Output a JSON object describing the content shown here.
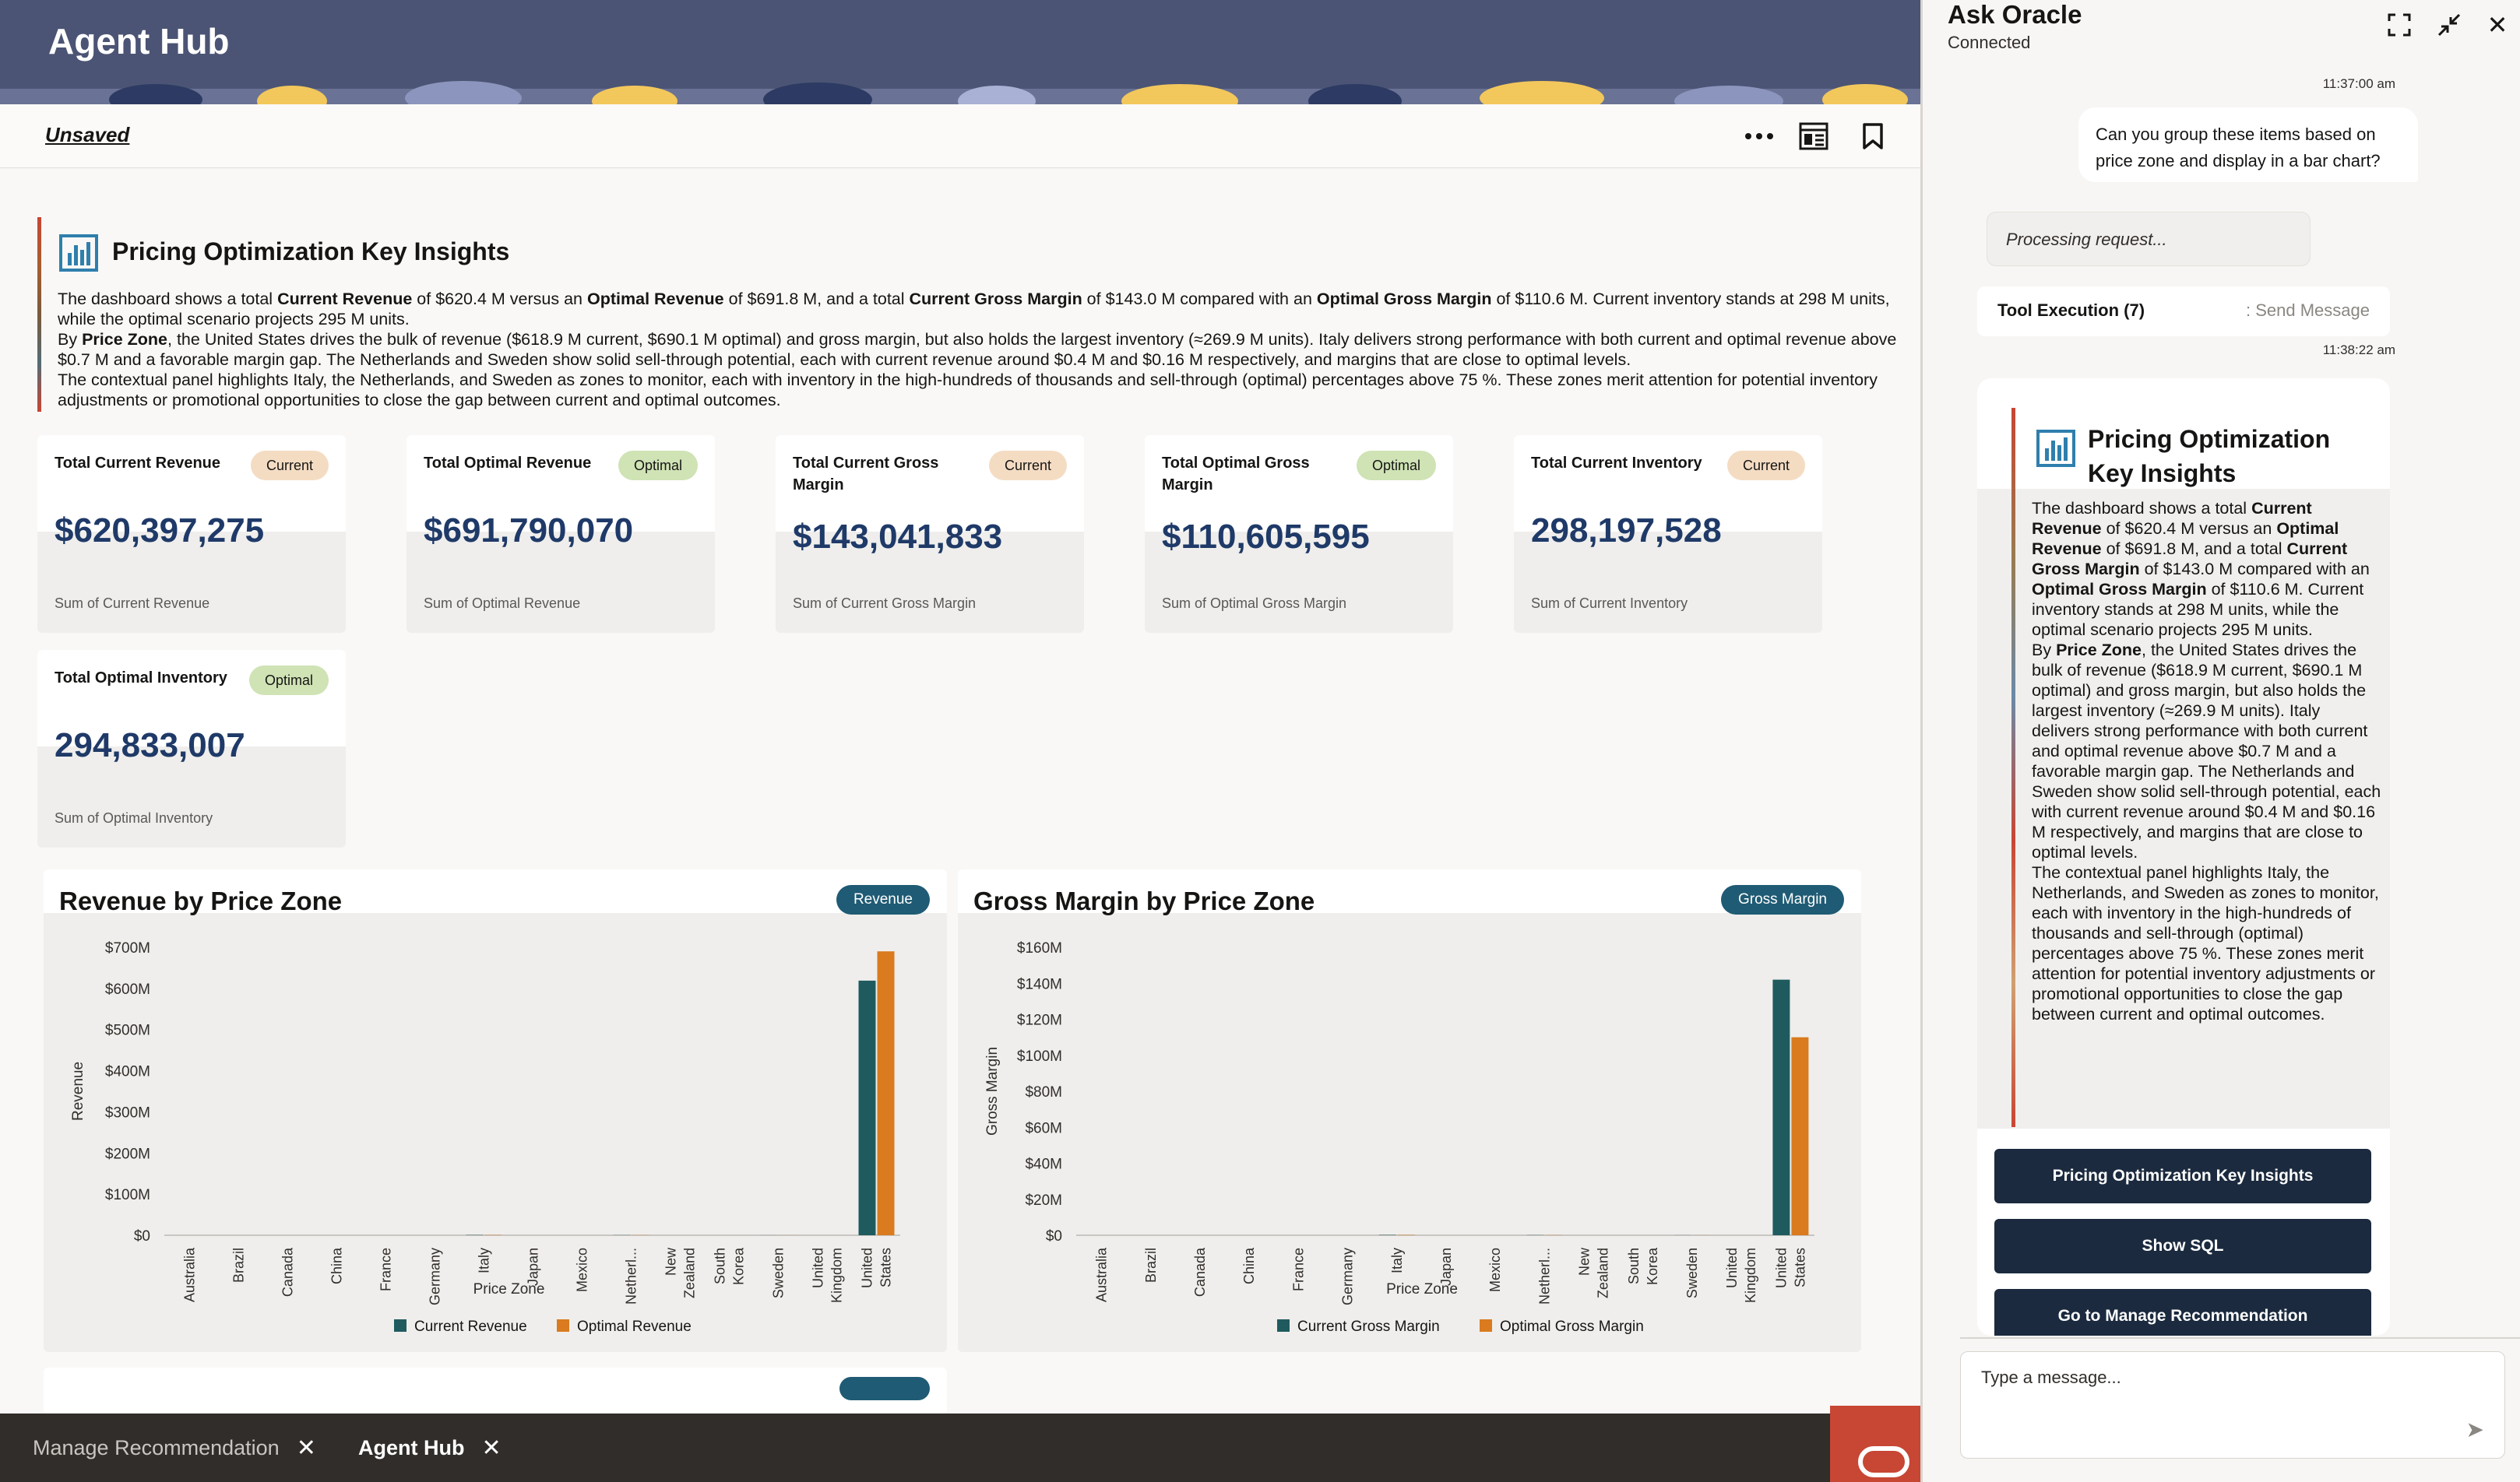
{
  "header": {
    "title": "Agent Hub"
  },
  "toolbar": {
    "unsaved_label": "Unsaved",
    "more_icon": "…",
    "layout_icon": "layout-icon",
    "bookmark_icon": "bookmark-icon"
  },
  "insights": {
    "title": "Pricing Optimization Key Insights",
    "p1_a": "The dashboard shows a total ",
    "p1_b": "Current Revenue",
    "p1_c": " of $620.4 M versus an ",
    "p1_d": "Optimal Revenue",
    "p1_e": " of $691.8 M, and a total ",
    "p1_f": "Current Gross Margin",
    "p1_g": " of $143.0 M compared with an ",
    "p1_h": "Optimal Gross Margin",
    "p1_i": " of $110.6 M. Current inventory stands at 298 M units, while the optimal scenario projects 295 M units.",
    "p2_a": "By ",
    "p2_b": "Price Zone",
    "p2_c": ", the United States drives the bulk of revenue ($618.9 M current, $690.1 M optimal) and gross margin, but also holds the largest inventory (≈269.9 M units). Italy delivers strong performance with both current and optimal revenue above $0.7 M and a favorable margin gap. The Netherlands and Sweden show solid sell-through potential, each with current revenue around $0.4 M and $0.16 M respectively, and margins that are close to optimal levels.",
    "p3": "The contextual panel highlights Italy, the Netherlands, and Sweden as zones to monitor, each with inventory in the high-hundreds of thousands and sell-through (optimal) percentages above 75 %. These zones merit attention for potential inventory adjustments or promotional opportunities to close the gap between current and optimal outcomes."
  },
  "kpis": [
    {
      "label": "Total Current Revenue",
      "badge": "Current",
      "value": "$620,397,275",
      "sub": "Sum of Current Revenue"
    },
    {
      "label": "Total Optimal Revenue",
      "badge": "Optimal",
      "value": "$691,790,070",
      "sub": "Sum of Optimal Revenue"
    },
    {
      "label": "Total Current Gross Margin",
      "badge": "Current",
      "value": "$143,041,833",
      "sub": "Sum of Current Gross Margin"
    },
    {
      "label": "Total Optimal Gross Margin",
      "badge": "Optimal",
      "value": "$110,605,595",
      "sub": "Sum of Optimal Gross Margin"
    },
    {
      "label": "Total Current Inventory",
      "badge": "Current",
      "value": "298,197,528",
      "sub": "Sum of Current Inventory"
    },
    {
      "label": "Total Optimal Inventory",
      "badge": "Optimal",
      "value": "294,833,007",
      "sub": "Sum of Optimal Inventory"
    }
  ],
  "colors": {
    "current": "#1f5b5e",
    "optimal": "#d97b1e",
    "badge_current": "#f4dcc3",
    "badge_optimal": "#cfe3b5",
    "header": "#4b5474",
    "kpi_value": "#1f3a68"
  },
  "charts": [
    {
      "title": "Revenue by Price Zone",
      "badge": "Revenue"
    },
    {
      "title": "Gross Margin by Price Zone",
      "badge": "Gross Margin"
    }
  ],
  "chart_data": [
    {
      "type": "bar",
      "title": "Revenue by Price Zone",
      "xlabel": "Price Zone",
      "ylabel": "Revenue",
      "yticks": [
        "$0",
        "$100M",
        "$200M",
        "$300M",
        "$400M",
        "$500M",
        "$600M",
        "$700M"
      ],
      "ylim": [
        0,
        700
      ],
      "categories": [
        [
          "Australia"
        ],
        [
          "Brazil"
        ],
        [
          "Canada"
        ],
        [
          "China"
        ],
        [
          "France"
        ],
        [
          "Germany"
        ],
        [
          "Italy"
        ],
        [
          "Japan"
        ],
        [
          "Mexico"
        ],
        [
          "Netherl..."
        ],
        [
          "New",
          "Zealand"
        ],
        [
          "South",
          "Korea"
        ],
        [
          "Sweden"
        ],
        [
          "United",
          "Kingdom"
        ],
        [
          "United",
          "States"
        ]
      ],
      "series": [
        {
          "name": "Current Revenue",
          "values": [
            0,
            0,
            0,
            0,
            0,
            0,
            0.7,
            0,
            0,
            0.4,
            0,
            0,
            0.16,
            0,
            618.9
          ]
        },
        {
          "name": "Optimal Revenue",
          "values": [
            0,
            0,
            0,
            0,
            0,
            0,
            0.7,
            0,
            0,
            0.4,
            0,
            0,
            0.16,
            0,
            690.1
          ]
        }
      ],
      "legend": "bottom",
      "grid": false
    },
    {
      "type": "bar",
      "title": "Gross Margin by Price Zone",
      "xlabel": "Price Zone",
      "ylabel": "Gross Margin",
      "yticks": [
        "$0",
        "$20M",
        "$40M",
        "$60M",
        "$80M",
        "$100M",
        "$120M",
        "$140M",
        "$160M"
      ],
      "ylim": [
        0,
        160
      ],
      "categories": [
        [
          "Australia"
        ],
        [
          "Brazil"
        ],
        [
          "Canada"
        ],
        [
          "China"
        ],
        [
          "France"
        ],
        [
          "Germany"
        ],
        [
          "Italy"
        ],
        [
          "Japan"
        ],
        [
          "Mexico"
        ],
        [
          "Netherl..."
        ],
        [
          "New",
          "Zealand"
        ],
        [
          "South",
          "Korea"
        ],
        [
          "Sweden"
        ],
        [
          "United",
          "Kingdom"
        ],
        [
          "United",
          "States"
        ]
      ],
      "series": [
        {
          "name": "Current Gross Margin",
          "values": [
            0,
            0,
            0,
            0,
            0,
            0,
            0.2,
            0,
            0,
            0.1,
            0,
            0,
            0.05,
            0,
            142
          ]
        },
        {
          "name": "Optimal Gross Margin",
          "values": [
            0,
            0,
            0,
            0,
            0,
            0,
            0.2,
            0,
            0,
            0.1,
            0,
            0,
            0.05,
            0,
            110
          ]
        }
      ],
      "legend": "bottom",
      "grid": false
    }
  ],
  "tabs": [
    {
      "label": "Manage Recommendation",
      "active": false
    },
    {
      "label": "Agent Hub",
      "active": true
    }
  ],
  "chat": {
    "title": "Ask Oracle",
    "status": "Connected",
    "ts1": "11:37:00 am",
    "user_message": "Can you group these items based on price zone and display in a bar chart?",
    "processing": "Processing request...",
    "tool_label": "Tool Execution (7)",
    "tool_action": ": Send Message",
    "ts2": "11:38:22 am",
    "response_title": "Pricing Optimization Key Insights",
    "buttons": [
      "Pricing Optimization Key Insights",
      "Show SQL",
      "Go to Manage Recommendation"
    ],
    "input_placeholder": "Type a message..."
  }
}
